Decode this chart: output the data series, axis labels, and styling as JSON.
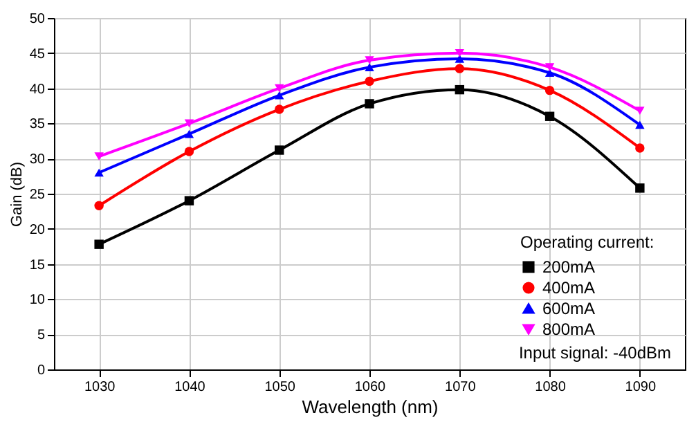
{
  "chart_data": {
    "type": "line",
    "xlabel": "Wavelength (nm)",
    "ylabel": "Gain (dB)",
    "legend_title": "Operating current:",
    "annotations": [
      "Input signal: -40dBm"
    ],
    "x": [
      1030,
      1040,
      1050,
      1060,
      1070,
      1080,
      1090
    ],
    "series": [
      {
        "name": "200mA",
        "color": "#000000",
        "marker": "square",
        "values": [
          17.8,
          24,
          31.2,
          37.8,
          39.8,
          36,
          25.8
        ]
      },
      {
        "name": "400mA",
        "color": "#ff0000",
        "marker": "circle",
        "values": [
          23.3,
          31,
          37,
          41,
          42.8,
          39.7,
          31.5
        ]
      },
      {
        "name": "600mA",
        "color": "#0000ff",
        "marker": "triangle",
        "values": [
          28,
          33.5,
          39,
          43,
          44.2,
          42.2,
          34.8
        ]
      },
      {
        "name": "800mA",
        "color": "#ff00ff",
        "marker": "triangle-down",
        "values": [
          30.3,
          35,
          40,
          44,
          45,
          43,
          36.8
        ]
      }
    ],
    "xlim": [
      1025,
      1095
    ],
    "xticks": [
      1030,
      1040,
      1050,
      1060,
      1070,
      1080,
      1090
    ],
    "ylim": [
      0,
      50
    ],
    "yticks": [
      0,
      5,
      10,
      15,
      20,
      25,
      30,
      35,
      40,
      45,
      50
    ],
    "grid": true,
    "legend": "bottom right"
  }
}
